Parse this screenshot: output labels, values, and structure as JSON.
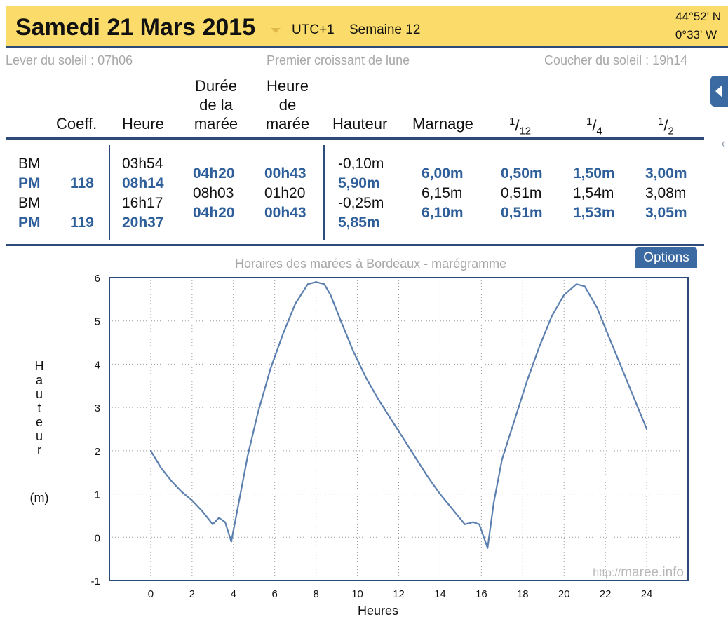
{
  "header": {
    "date": "Samedi 21 Mars 2015",
    "utc": "UTC+1",
    "week": "Semaine 12",
    "latitude": "44°52' N",
    "longitude": "0°33' W"
  },
  "sun_moon": {
    "sunrise": "Lever du soleil : 07h06",
    "moon_phase": "Premier croissant de lune",
    "sunset": "Coucher du soleil : 19h14"
  },
  "table": {
    "headers": {
      "coeff": "Coeff.",
      "heure": "Heure",
      "duree": [
        "Durée",
        "de la",
        "marée"
      ],
      "heure_maree": [
        "Heure",
        "de",
        "marée"
      ],
      "hauteur": "Hauteur",
      "marnage": "Marnage",
      "twelfth_num": "1",
      "twelfth_den": "12",
      "quarter_num": "1",
      "quarter_den": "4",
      "half_num": "1",
      "half_den": "2"
    },
    "rows": [
      {
        "type": "BM",
        "coeff": "",
        "heure": "03h54",
        "hauteur": "-0,10m"
      },
      {
        "type": "PM",
        "coeff": "118",
        "heure": "08h14",
        "hauteur": "5,90m"
      },
      {
        "type": "BM",
        "coeff": "",
        "heure": "16h17",
        "hauteur": "-0,25m"
      },
      {
        "type": "PM",
        "coeff": "119",
        "heure": "20h37",
        "hauteur": "5,85m"
      }
    ],
    "intervals": [
      {
        "duree": "04h20",
        "heure_maree": "00h43",
        "marnage": "6,00m",
        "twelfth": "0,50m",
        "quarter": "1,50m",
        "half": "3,00m"
      },
      {
        "duree": "08h03",
        "heure_maree": "01h20",
        "marnage": "6,15m",
        "twelfth": "0,51m",
        "quarter": "1,54m",
        "half": "3,08m"
      },
      {
        "duree": "04h20",
        "heure_maree": "00h43",
        "marnage": "6,10m",
        "twelfth": "0,51m",
        "quarter": "1,53m",
        "half": "3,05m"
      }
    ]
  },
  "options_label": "Options",
  "colors": {
    "accent": "#2e5f9a",
    "header_bg": "#fbdc6a",
    "curve": "#5b7fae"
  },
  "chart_data": {
    "type": "line",
    "title": "Horaires des marées à Bordeaux - marégramme",
    "xlabel": "Heures",
    "ylabel_letters": [
      "H",
      "a",
      "u",
      "t",
      "e",
      "u",
      "r"
    ],
    "ylabel_unit": "(m)",
    "xlim": [
      -2,
      26
    ],
    "ylim": [
      -1,
      6
    ],
    "xticks": [
      0,
      2,
      4,
      6,
      8,
      10,
      12,
      14,
      16,
      18,
      20,
      22,
      24
    ],
    "yticks": [
      -1,
      0,
      1,
      2,
      3,
      4,
      5,
      6
    ],
    "grid": true,
    "watermark_prefix": "http://",
    "watermark": "maree.info",
    "series": [
      {
        "x": [
          0,
          0.5,
          1,
          1.5,
          2,
          2.5,
          3,
          3.3,
          3.6,
          3.9,
          4.3,
          4.7,
          5.2,
          5.8,
          6.4,
          7,
          7.6,
          8,
          8.4,
          8.7,
          9.2,
          9.8,
          10.4,
          11,
          11.6,
          12.2,
          12.8,
          13.4,
          14,
          14.6,
          15.2,
          15.6,
          15.9,
          16.3,
          16.6,
          17,
          17.6,
          18.2,
          18.8,
          19.4,
          20,
          20.6,
          21,
          21.6,
          22.2,
          22.8,
          23.4,
          24
        ],
        "y": [
          2.0,
          1.6,
          1.3,
          1.05,
          0.85,
          0.6,
          0.3,
          0.45,
          0.35,
          -0.1,
          0.9,
          1.9,
          2.9,
          3.9,
          4.7,
          5.4,
          5.85,
          5.9,
          5.85,
          5.6,
          5.0,
          4.3,
          3.7,
          3.2,
          2.75,
          2.3,
          1.85,
          1.4,
          1.0,
          0.65,
          0.3,
          0.35,
          0.3,
          -0.25,
          0.8,
          1.8,
          2.7,
          3.6,
          4.4,
          5.1,
          5.6,
          5.85,
          5.8,
          5.3,
          4.6,
          3.9,
          3.2,
          2.5
        ]
      }
    ]
  }
}
